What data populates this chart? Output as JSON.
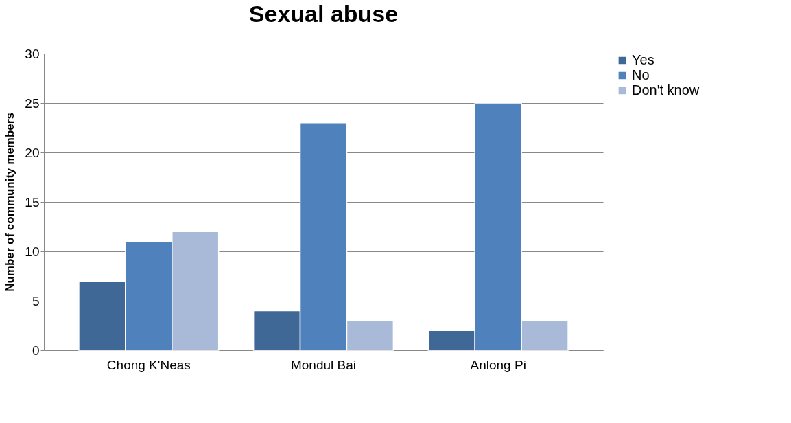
{
  "chart_data": {
    "type": "bar",
    "title": "Sexual abuse",
    "ylabel": "Number of community members",
    "categories": [
      "Chong K'Neas",
      "Mondul Bai",
      "Anlong Pi"
    ],
    "series": [
      {
        "name": "Yes",
        "color": "#3f6897",
        "values": [
          7,
          4,
          2
        ]
      },
      {
        "name": "No",
        "color": "#4f81bd",
        "values": [
          11,
          23,
          25
        ]
      },
      {
        "name": "Don't know",
        "color": "#a9b9d8",
        "values": [
          12,
          3,
          3
        ]
      }
    ],
    "ylim": [
      0,
      30
    ],
    "yticks": [
      0,
      5,
      10,
      15,
      20,
      25,
      30
    ],
    "grid": "y",
    "legend": "right"
  }
}
